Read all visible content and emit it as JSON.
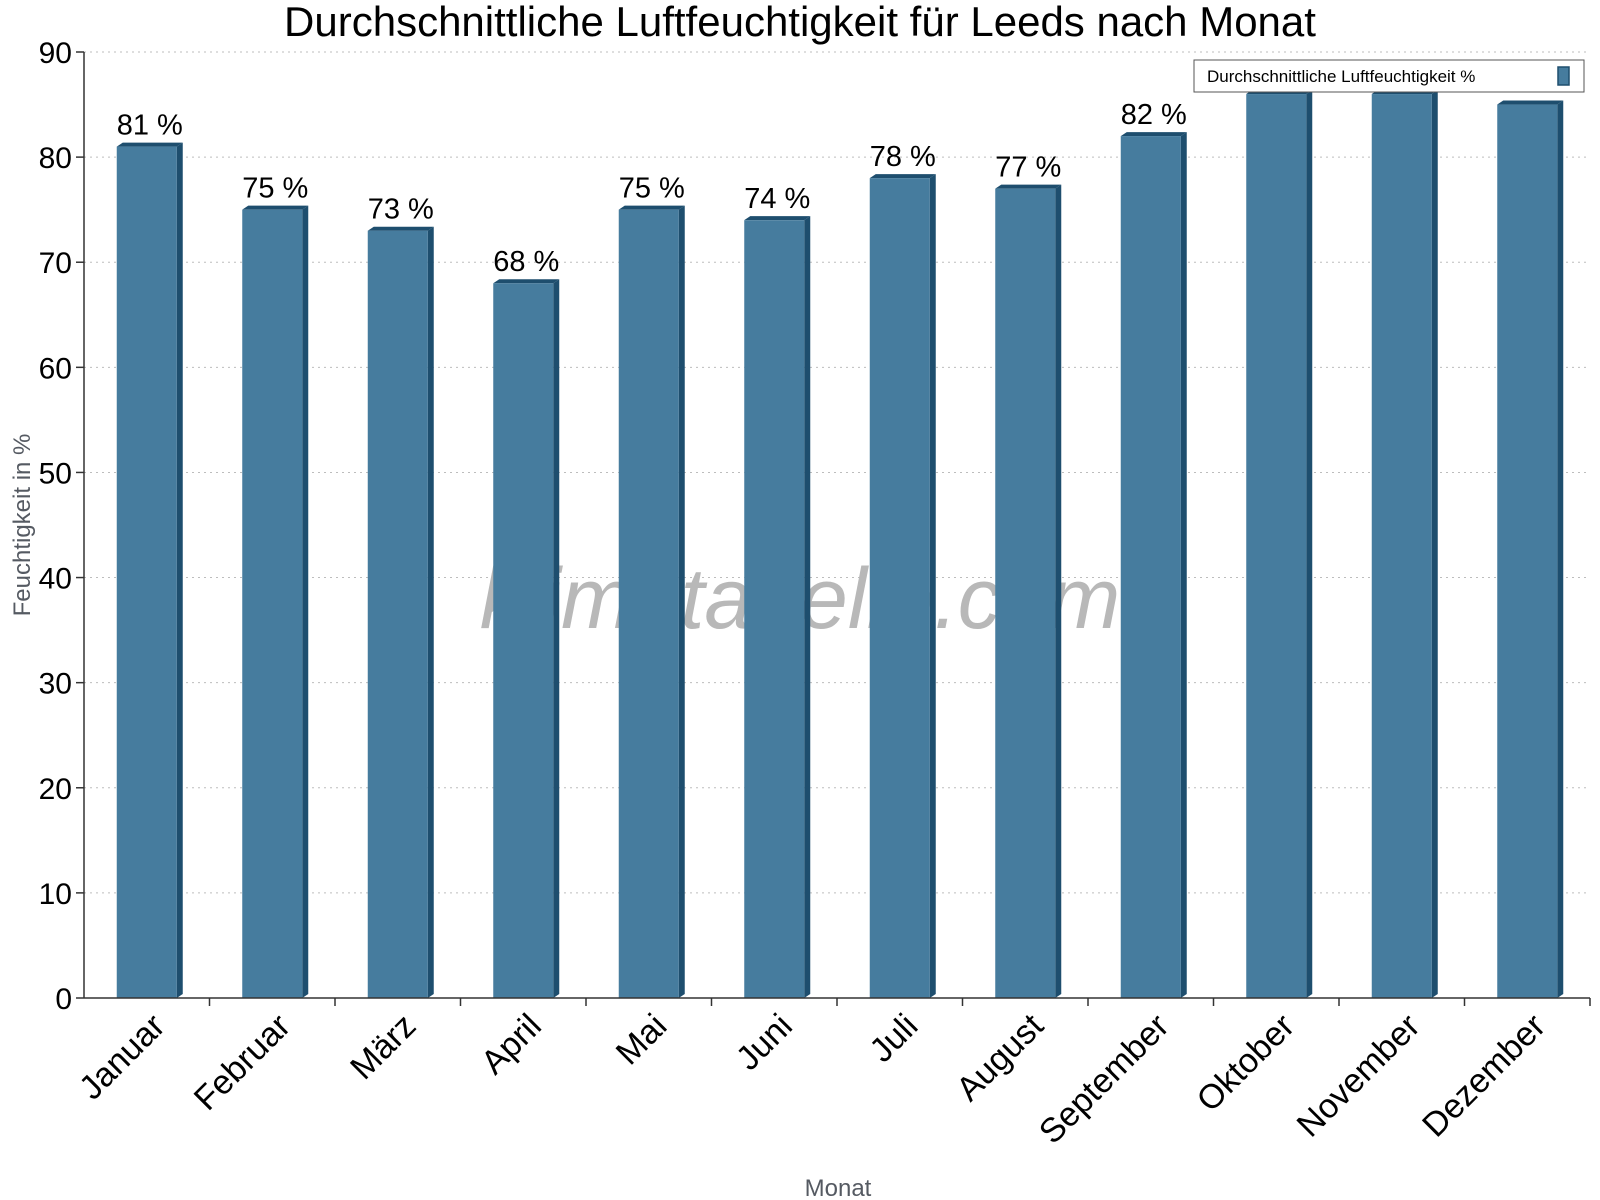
{
  "chart_data": {
    "type": "bar",
    "title": "Durchschnittliche Luftfeuchtigkeit für Leeds nach Monat",
    "xlabel": "Monat",
    "ylabel": "Feuchtigkeit in %",
    "categories": [
      "Januar",
      "Februar",
      "März",
      "April",
      "Mai",
      "Juni",
      "Juli",
      "August",
      "September",
      "Oktober",
      "November",
      "Dezember"
    ],
    "series": [
      {
        "name": "Durchschnittliche Luftfeuchtigkeit %",
        "values": [
          81,
          75,
          73,
          68,
          75,
          74,
          78,
          77,
          82,
          86,
          86,
          85
        ],
        "labels": [
          "81 %",
          "75 %",
          "73 %",
          "68 %",
          "75 %",
          "74 %",
          "78 %",
          "77 %",
          "82 %",
          "",
          "",
          ""
        ]
      }
    ],
    "ylim": [
      0,
      90
    ],
    "yticks": [
      0,
      10,
      20,
      30,
      40,
      50,
      60,
      70,
      80,
      90
    ],
    "grid": true,
    "legend_position": "top-right",
    "bar_color": "#467c9e",
    "bar_shade_color": "#1e4e6e"
  },
  "watermark": "klimatabelle.com"
}
